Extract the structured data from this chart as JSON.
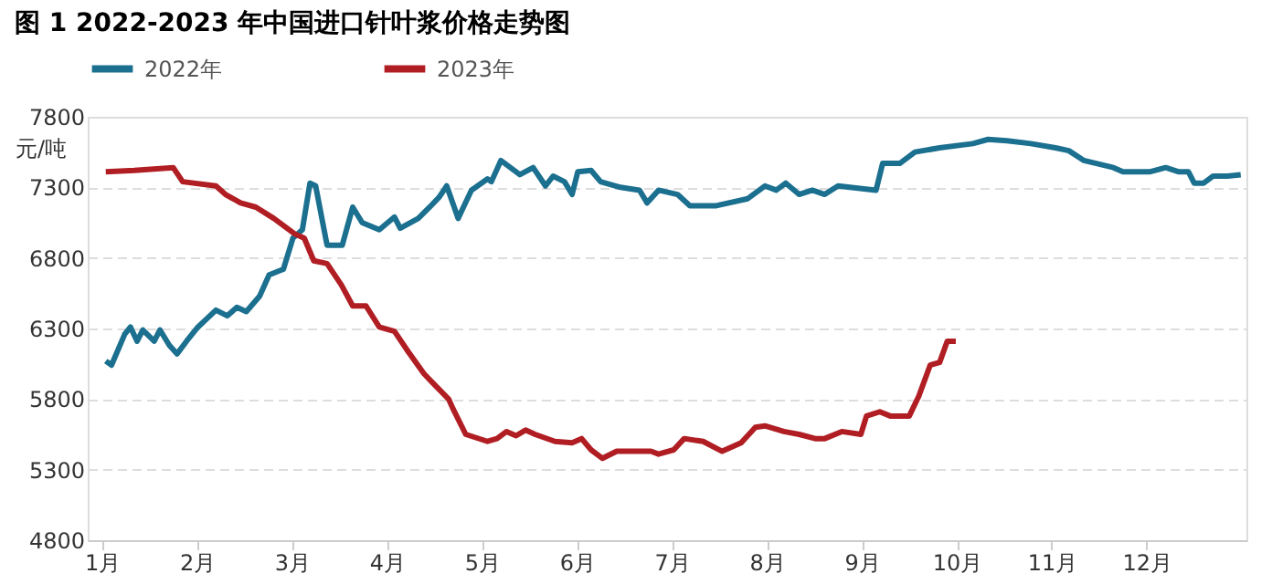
{
  "chart_data": {
    "type": "line",
    "title": "图 1 2022-2023 年中国进口针叶浆价格走势图",
    "ylabel": "元/吨",
    "xlim": [
      0.85,
      13.05
    ],
    "xticks": [
      {
        "value": 1,
        "label": "1月"
      },
      {
        "value": 2,
        "label": "2月"
      },
      {
        "value": 3,
        "label": "3月"
      },
      {
        "value": 4,
        "label": "4月"
      },
      {
        "value": 5,
        "label": "5月"
      },
      {
        "value": 6,
        "label": "6月"
      },
      {
        "value": 7,
        "label": "7月"
      },
      {
        "value": 8,
        "label": "8月"
      },
      {
        "value": 9,
        "label": "9月"
      },
      {
        "value": 10,
        "label": "10月"
      },
      {
        "value": 11,
        "label": "11月"
      },
      {
        "value": 12,
        "label": "12月"
      }
    ],
    "ylim": [
      4800,
      7800
    ],
    "yticks": [
      4800,
      5300,
      5800,
      6300,
      6800,
      7300,
      7800
    ],
    "grid": "y",
    "legend": "top",
    "marker": "none",
    "line_style": "solid",
    "series": [
      {
        "name": "2022年",
        "color": "#1b6f8f",
        "x": [
          1.04,
          1.1,
          1.24,
          1.3,
          1.37,
          1.43,
          1.55,
          1.61,
          1.71,
          1.79,
          1.89,
          2.01,
          2.2,
          2.32,
          2.42,
          2.52,
          2.66,
          2.76,
          2.91,
          3.01,
          3.11,
          3.19,
          3.25,
          3.37,
          3.53,
          3.64,
          3.74,
          3.92,
          4.08,
          4.14,
          4.33,
          4.45,
          4.55,
          4.63,
          4.75,
          4.89,
          5.06,
          5.1,
          5.2,
          5.3,
          5.4,
          5.54,
          5.67,
          5.75,
          5.87,
          5.95,
          6.01,
          6.15,
          6.25,
          6.46,
          6.66,
          6.74,
          6.86,
          7.06,
          7.19,
          7.47,
          7.8,
          7.98,
          8.1,
          8.2,
          8.34,
          8.48,
          8.61,
          8.75,
          9.15,
          9.22,
          9.4,
          9.56,
          9.82,
          10.17,
          10.33,
          10.53,
          10.78,
          11.04,
          11.18,
          11.34,
          11.65,
          11.75,
          12.03,
          12.2,
          12.34,
          12.44,
          12.5,
          12.6,
          12.7,
          12.85,
          12.99
        ],
        "values": [
          6070,
          6040,
          6260,
          6310,
          6210,
          6290,
          6210,
          6290,
          6180,
          6120,
          6210,
          6310,
          6430,
          6390,
          6450,
          6420,
          6530,
          6680,
          6720,
          6940,
          7000,
          7330,
          7310,
          6890,
          6890,
          7160,
          7050,
          7000,
          7090,
          7010,
          7080,
          7160,
          7230,
          7310,
          7080,
          7280,
          7360,
          7340,
          7490,
          7440,
          7390,
          7440,
          7310,
          7380,
          7340,
          7250,
          7410,
          7420,
          7340,
          7300,
          7280,
          7190,
          7280,
          7250,
          7170,
          7170,
          7220,
          7310,
          7280,
          7330,
          7250,
          7280,
          7250,
          7310,
          7280,
          7470,
          7470,
          7550,
          7580,
          7610,
          7640,
          7630,
          7610,
          7580,
          7560,
          7490,
          7440,
          7410,
          7410,
          7440,
          7410,
          7410,
          7330,
          7330,
          7380,
          7380,
          7390
        ]
      },
      {
        "name": "2023年",
        "color": "#b01e23",
        "x": [
          1.04,
          1.34,
          1.75,
          1.85,
          2.2,
          2.3,
          2.46,
          2.62,
          2.81,
          3.03,
          3.13,
          3.23,
          3.37,
          3.52,
          3.64,
          3.78,
          3.92,
          4.08,
          4.23,
          4.39,
          4.49,
          4.65,
          4.69,
          4.83,
          5.06,
          5.16,
          5.26,
          5.36,
          5.46,
          5.56,
          5.77,
          5.95,
          6.05,
          6.15,
          6.27,
          6.42,
          6.78,
          6.86,
          7.02,
          7.13,
          7.33,
          7.53,
          7.73,
          7.88,
          7.98,
          8.18,
          8.34,
          8.51,
          8.61,
          8.79,
          8.99,
          9.05,
          9.19,
          9.3,
          9.5,
          9.6,
          9.72,
          9.82,
          9.9,
          9.99
        ],
        "values": [
          7410,
          7420,
          7440,
          7340,
          7310,
          7250,
          7190,
          7160,
          7080,
          6970,
          6940,
          6780,
          6760,
          6610,
          6460,
          6460,
          6310,
          6280,
          6130,
          5980,
          5910,
          5800,
          5740,
          5550,
          5500,
          5520,
          5570,
          5540,
          5580,
          5550,
          5500,
          5490,
          5520,
          5440,
          5380,
          5430,
          5430,
          5410,
          5440,
          5520,
          5500,
          5430,
          5490,
          5600,
          5610,
          5570,
          5550,
          5520,
          5520,
          5570,
          5550,
          5680,
          5710,
          5680,
          5680,
          5820,
          6040,
          6060,
          6210,
          6210
        ]
      }
    ]
  }
}
